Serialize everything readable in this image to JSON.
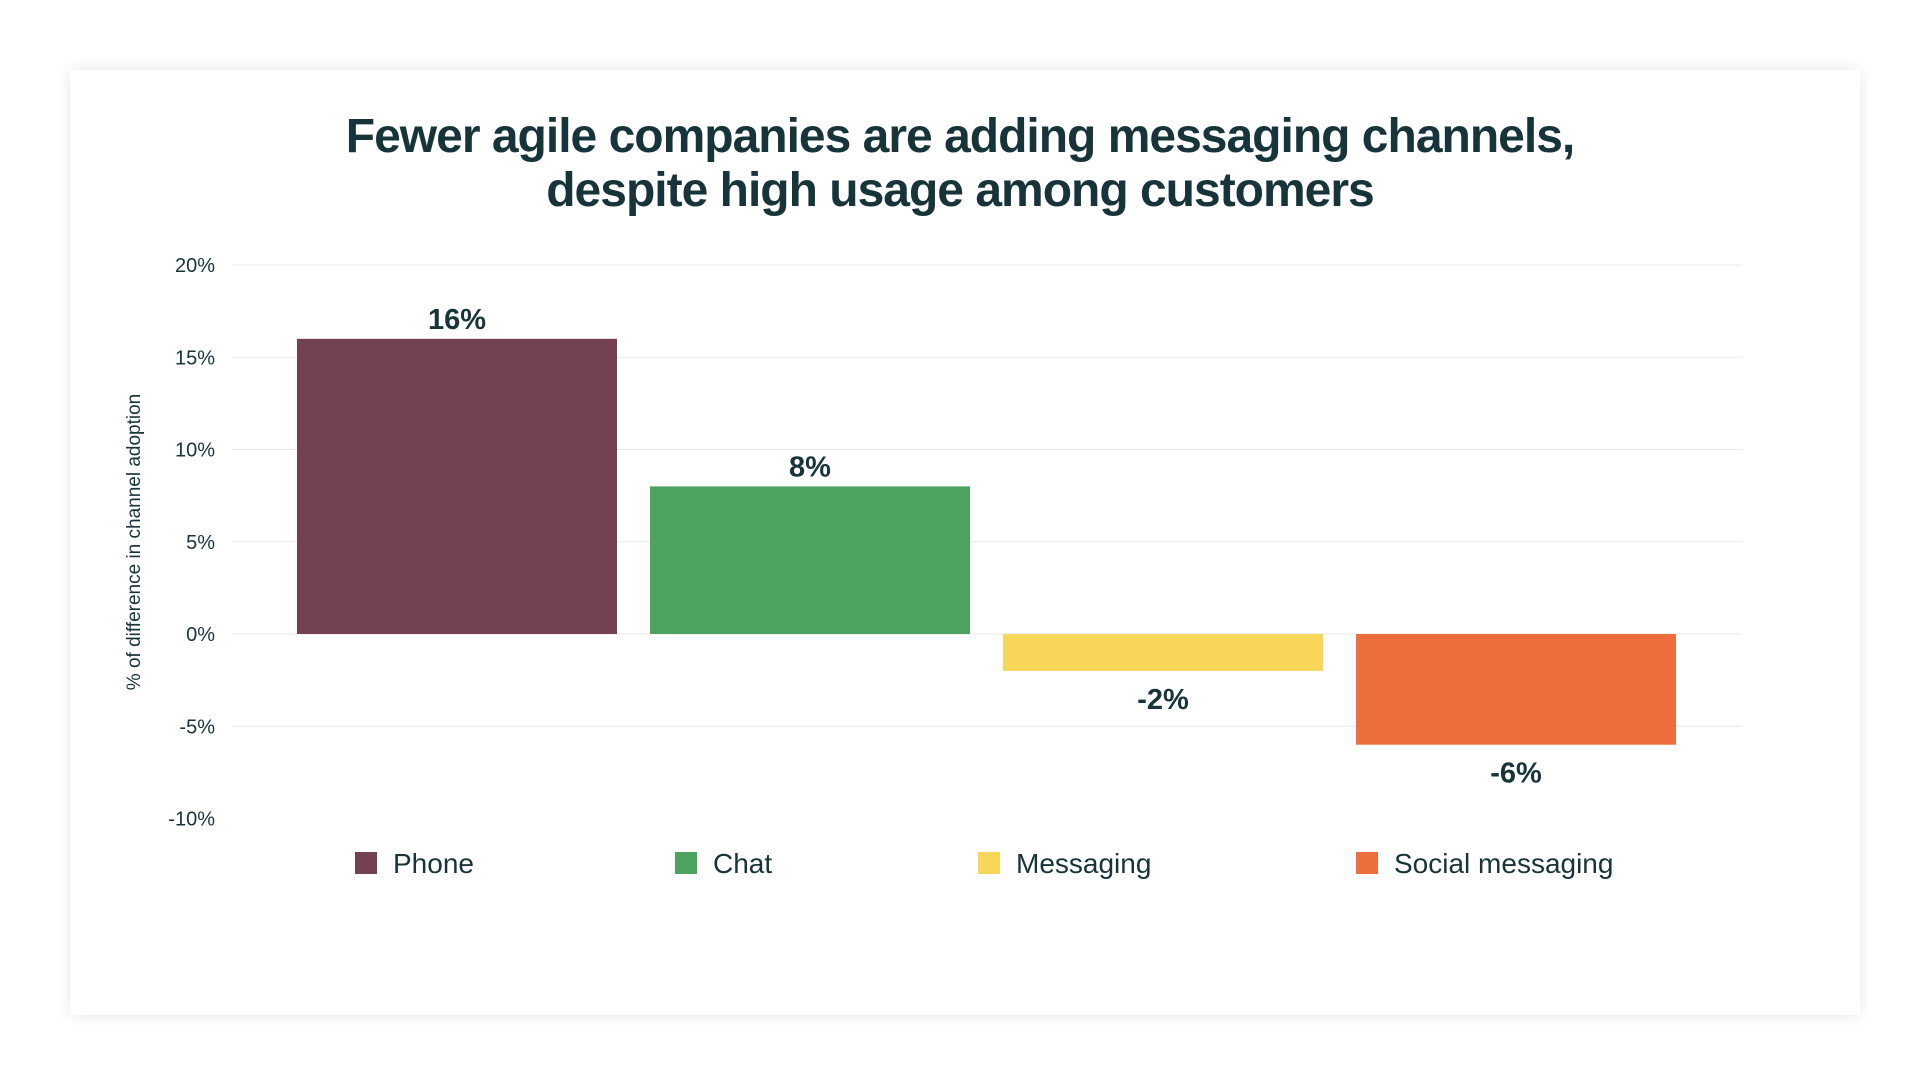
{
  "chart_data": {
    "type": "bar",
    "title_lines": [
      "Fewer agile companies are adding messaging channels,",
      "despite high usage among customers"
    ],
    "ylabel": "% of difference in channel adoption",
    "xlabel": "",
    "ylim": [
      -10,
      20
    ],
    "yticks": [
      20,
      15,
      10,
      5,
      0,
      -5,
      -10
    ],
    "ytick_labels": [
      "20%",
      "15%",
      "10%",
      "5%",
      "0%",
      "-5%",
      "-10%"
    ],
    "grid": true,
    "legend_position": "bottom",
    "categories": [
      "Phone",
      "Chat",
      "Messaging",
      "Social messaging"
    ],
    "values": [
      16,
      8,
      -2,
      -6
    ],
    "data_labels": [
      "16%",
      "8%",
      "-2%",
      "-6%"
    ],
    "colors": [
      "#744152",
      "#4ba35f",
      "#f7d659",
      "#ec6e3c"
    ]
  },
  "style": {
    "text_color": "#17343a",
    "grid_color": "#e8e8e8"
  }
}
